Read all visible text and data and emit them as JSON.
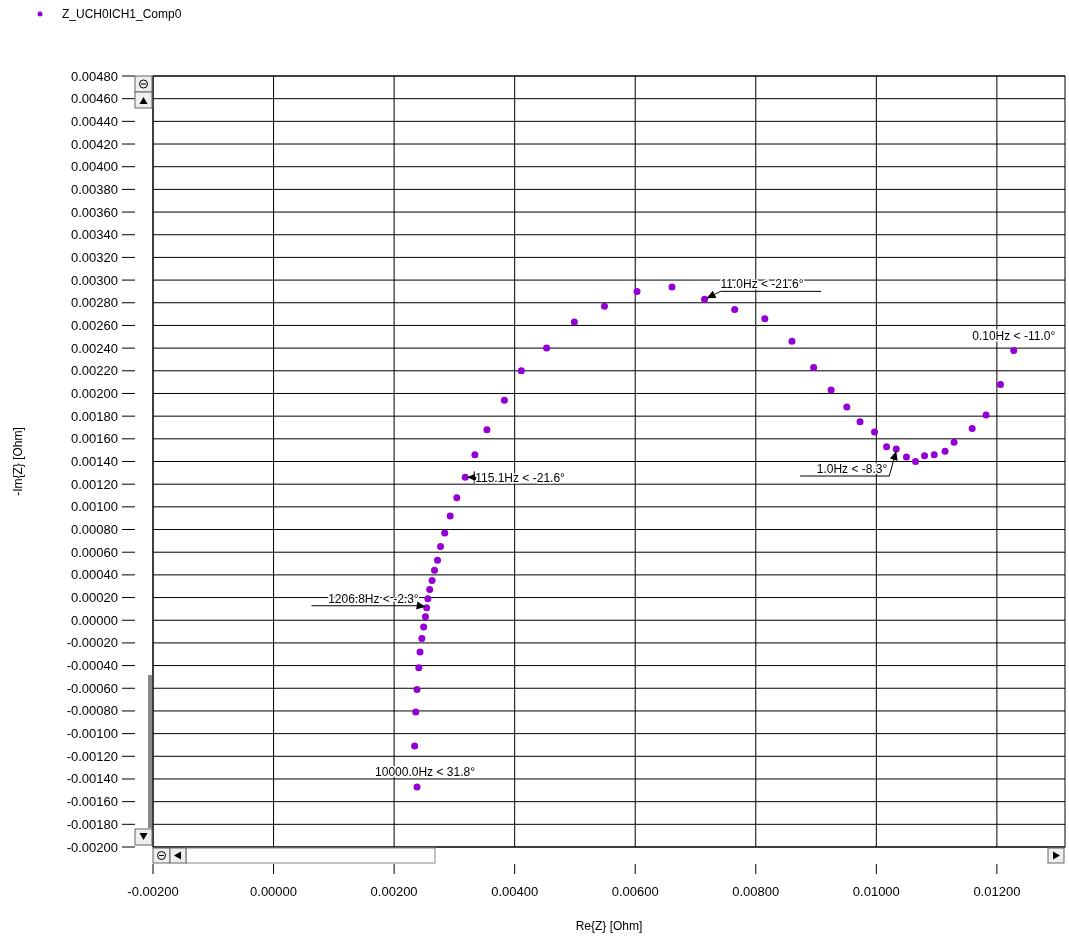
{
  "chart_data": {
    "type": "scatter",
    "xlabel": "Re{Z} [Ohm]",
    "ylabel": "-Im{Z} [Ohm]",
    "legend": "top left",
    "grid": true,
    "marker": "circle",
    "xlim": [
      -0.002,
      0.01313
    ],
    "ylim": [
      -0.002,
      0.0048
    ],
    "xticks": [
      {
        "value": -0.002,
        "label": "-0.00200"
      },
      {
        "value": 0,
        "label": "0.00000"
      },
      {
        "value": 0.002,
        "label": "0.00200"
      },
      {
        "value": 0.004,
        "label": "0.00400"
      },
      {
        "value": 0.006,
        "label": "0.00600"
      },
      {
        "value": 0.008,
        "label": "0.00800"
      },
      {
        "value": 0.01,
        "label": "0.01000"
      },
      {
        "value": 0.012,
        "label": "0.01200"
      }
    ],
    "yticks": [
      {
        "value": -0.002,
        "label": "-0.00200"
      },
      {
        "value": -0.0018,
        "label": "-0.00180"
      },
      {
        "value": -0.0016,
        "label": "-0.00160"
      },
      {
        "value": -0.0014,
        "label": "-0.00140"
      },
      {
        "value": -0.0012,
        "label": "-0.00120"
      },
      {
        "value": -0.001,
        "label": "-0.00100"
      },
      {
        "value": -0.0008,
        "label": "-0.00080"
      },
      {
        "value": -0.0006,
        "label": "-0.00060"
      },
      {
        "value": -0.0004,
        "label": "-0.00040"
      },
      {
        "value": -0.0002,
        "label": "-0.00020"
      },
      {
        "value": 0,
        "label": "0.00000"
      },
      {
        "value": 0.0002,
        "label": "0.00020"
      },
      {
        "value": 0.0004,
        "label": "0.00040"
      },
      {
        "value": 0.0006,
        "label": "0.00060"
      },
      {
        "value": 0.0008,
        "label": "0.00080"
      },
      {
        "value": 0.001,
        "label": "0.00100"
      },
      {
        "value": 0.0012,
        "label": "0.00120"
      },
      {
        "value": 0.0014,
        "label": "0.00140"
      },
      {
        "value": 0.0016,
        "label": "0.00160"
      },
      {
        "value": 0.0018,
        "label": "0.00180"
      },
      {
        "value": 0.002,
        "label": "0.00200"
      },
      {
        "value": 0.0022,
        "label": "0.00220"
      },
      {
        "value": 0.0024,
        "label": "0.00240"
      },
      {
        "value": 0.0026,
        "label": "0.00260"
      },
      {
        "value": 0.0028,
        "label": "0.00280"
      },
      {
        "value": 0.003,
        "label": "0.00300"
      },
      {
        "value": 0.0032,
        "label": "0.00320"
      },
      {
        "value": 0.0034,
        "label": "0.00340"
      },
      {
        "value": 0.0036,
        "label": "0.00360"
      },
      {
        "value": 0.0038,
        "label": "0.00380"
      },
      {
        "value": 0.004,
        "label": "0.00400"
      },
      {
        "value": 0.0042,
        "label": "0.00420"
      },
      {
        "value": 0.0044,
        "label": "0.00440"
      },
      {
        "value": 0.0046,
        "label": "0.00460"
      },
      {
        "value": 0.0048,
        "label": "0.00480"
      }
    ],
    "series": [
      {
        "name": "Z_UCH0ICH1_Comp0",
        "color": "#9400d3",
        "x": [
          0.00238,
          0.00234,
          0.00236,
          0.00238,
          0.00241,
          0.00243,
          0.00246,
          0.00249,
          0.00252,
          0.00254,
          0.00256,
          0.00259,
          0.00263,
          0.00267,
          0.00272,
          0.00277,
          0.00284,
          0.00293,
          0.00304,
          0.00318,
          0.00334,
          0.00354,
          0.00383,
          0.00411,
          0.00453,
          0.00499,
          0.00549,
          0.00603,
          0.00661,
          0.00715,
          0.00765,
          0.00815,
          0.0086,
          0.00896,
          0.00925,
          0.00951,
          0.00973,
          0.00997,
          0.01017,
          0.01033,
          0.0105,
          0.01065,
          0.0108,
          0.01096,
          0.01114,
          0.01129,
          0.01159,
          0.01182,
          0.01206,
          0.01228
        ],
        "values": [
          -0.00147,
          -0.00111,
          -0.00081,
          -0.00061,
          -0.00042,
          -0.00028,
          -0.00016,
          -6e-05,
          3e-05,
          0.00011,
          0.00019,
          0.00027,
          0.00035,
          0.00044,
          0.00053,
          0.00065,
          0.00077,
          0.00092,
          0.00108,
          0.00126,
          0.00146,
          0.00168,
          0.00194,
          0.0022,
          0.0024,
          0.00263,
          0.00277,
          0.0029,
          0.00294,
          0.00283,
          0.00274,
          0.00266,
          0.00246,
          0.00223,
          0.00203,
          0.00188,
          0.00175,
          0.00166,
          0.00153,
          0.00151,
          0.00144,
          0.0014,
          0.00145,
          0.00146,
          0.00149,
          0.00157,
          0.00169,
          0.00181,
          0.00208,
          0.00238
        ]
      }
    ],
    "annotations": [
      {
        "text": "11.0Hz < -21.6°",
        "x": 0.00715,
        "y": 0.00283
      },
      {
        "text": "0.10Hz < -11.0°",
        "x": 0.01228,
        "y": 0.00238
      },
      {
        "text": "1.0Hz < -8.3°",
        "x": 0.01033,
        "y": 0.00151
      },
      {
        "text": "115.1Hz < -21.6°",
        "x": 0.00318,
        "y": 0.00126
      },
      {
        "text": "1206.8Hz < -2.3°",
        "x": 0.00254,
        "y": 0.00011
      },
      {
        "text": "10000.0Hz < 31.8°",
        "x": 0.00238,
        "y": -0.00147
      }
    ]
  }
}
